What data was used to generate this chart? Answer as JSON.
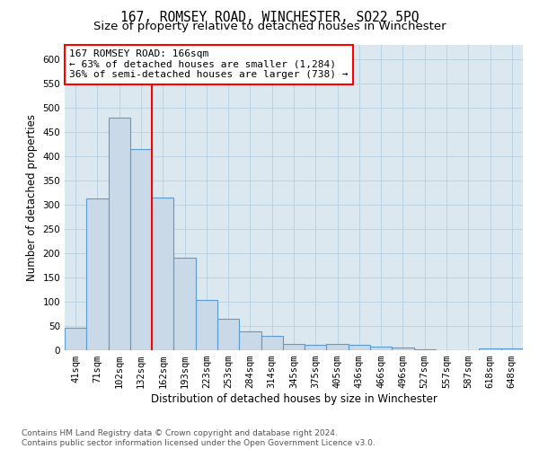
{
  "title": "167, ROMSEY ROAD, WINCHESTER, SO22 5PQ",
  "subtitle": "Size of property relative to detached houses in Winchester",
  "xlabel": "Distribution of detached houses by size in Winchester",
  "ylabel": "Number of detached properties",
  "footer_line1": "Contains HM Land Registry data © Crown copyright and database right 2024.",
  "footer_line2": "Contains public sector information licensed under the Open Government Licence v3.0.",
  "annotation_line1": "167 ROMSEY ROAD: 166sqm",
  "annotation_line2": "← 63% of detached houses are smaller (1,284)",
  "annotation_line3": "36% of semi-detached houses are larger (738) →",
  "categories": [
    "41sqm",
    "71sqm",
    "102sqm",
    "132sqm",
    "162sqm",
    "193sqm",
    "223sqm",
    "253sqm",
    "284sqm",
    "314sqm",
    "345sqm",
    "375sqm",
    "405sqm",
    "436sqm",
    "466sqm",
    "496sqm",
    "527sqm",
    "557sqm",
    "587sqm",
    "618sqm",
    "648sqm"
  ],
  "values": [
    46,
    313,
    480,
    415,
    315,
    190,
    103,
    65,
    38,
    29,
    13,
    11,
    13,
    12,
    8,
    5,
    1,
    0,
    0,
    4,
    4
  ],
  "bar_color": "#c9d9e8",
  "bar_edge_color": "#5b9bd5",
  "bar_linewidth": 0.8,
  "vline_color": "red",
  "vline_linewidth": 1.5,
  "grid_color": "#b8cfe0",
  "background_color": "#dce8f0",
  "ylim": [
    0,
    630
  ],
  "yticks": [
    0,
    50,
    100,
    150,
    200,
    250,
    300,
    350,
    400,
    450,
    500,
    550,
    600
  ],
  "title_fontsize": 10.5,
  "subtitle_fontsize": 9.5,
  "xlabel_fontsize": 8.5,
  "ylabel_fontsize": 8.5,
  "tick_fontsize": 7.5,
  "annotation_fontsize": 8,
  "footer_fontsize": 6.5
}
